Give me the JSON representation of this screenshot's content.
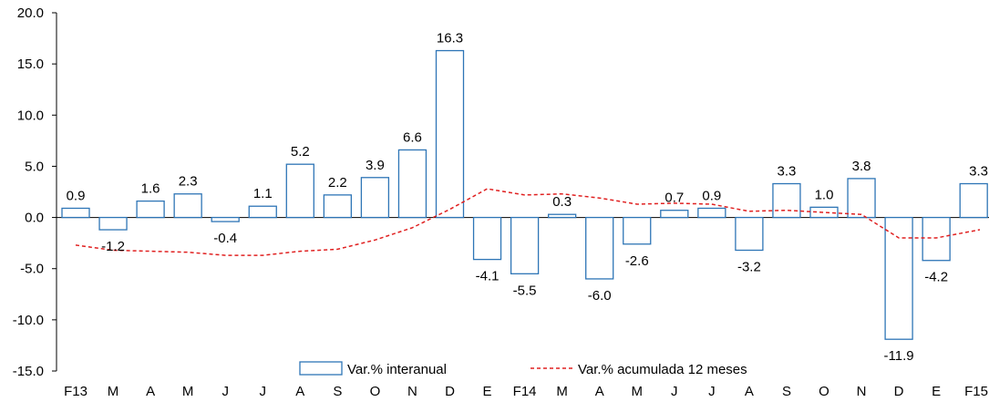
{
  "chart_data": {
    "type": "bar",
    "categories": [
      "F13",
      "M",
      "A",
      "M",
      "J",
      "J",
      "A",
      "S",
      "O",
      "N",
      "D",
      "E",
      "F14",
      "M",
      "A",
      "M",
      "J",
      "J",
      "A",
      "S",
      "O",
      "N",
      "D",
      "E",
      "F15"
    ],
    "series": [
      {
        "name": "Var.% interanual",
        "type": "bar",
        "values": [
          0.9,
          -1.2,
          1.6,
          2.3,
          -0.4,
          1.1,
          5.2,
          2.2,
          3.9,
          6.6,
          16.3,
          -4.1,
          -5.5,
          0.3,
          -6.0,
          -2.6,
          0.7,
          0.9,
          -3.2,
          3.3,
          1.0,
          3.8,
          -11.9,
          -4.2,
          3.3
        ],
        "labels": [
          "0.9",
          "-1.2",
          "1.6",
          "2.3",
          "-0.4",
          "1.1",
          "5.2",
          "2.2",
          "3.9",
          "6.6",
          "16.3",
          "-4.1",
          "-5.5",
          "0.3",
          "-6.0",
          "-2.6",
          "0.7",
          "0.9",
          "-3.2",
          "3.3",
          "1.0",
          "3.8",
          "-11.9",
          "-4.2",
          "3.3"
        ],
        "color": "#2e75b6"
      },
      {
        "name": "Var.% acumulada 12 meses",
        "type": "line",
        "style": "dashed",
        "values": [
          -2.7,
          -3.2,
          -3.3,
          -3.4,
          -3.7,
          -3.7,
          -3.3,
          -3.1,
          -2.2,
          -1.0,
          0.8,
          2.8,
          2.2,
          2.3,
          1.9,
          1.3,
          1.4,
          1.3,
          0.6,
          0.7,
          0.5,
          0.3,
          -2.0,
          -2.0,
          -1.2
        ],
        "color": "#e02020"
      }
    ],
    "ylim": [
      -15.0,
      20.0
    ],
    "yticks": [
      "20.0",
      "15.0",
      "10.0",
      "5.0",
      "0.0",
      "-5.0",
      "-10.0",
      "-15.0"
    ],
    "ytick_values": [
      20,
      15,
      10,
      5,
      0,
      -5,
      -10,
      -15
    ],
    "legend_position": "bottom",
    "grid": false
  }
}
